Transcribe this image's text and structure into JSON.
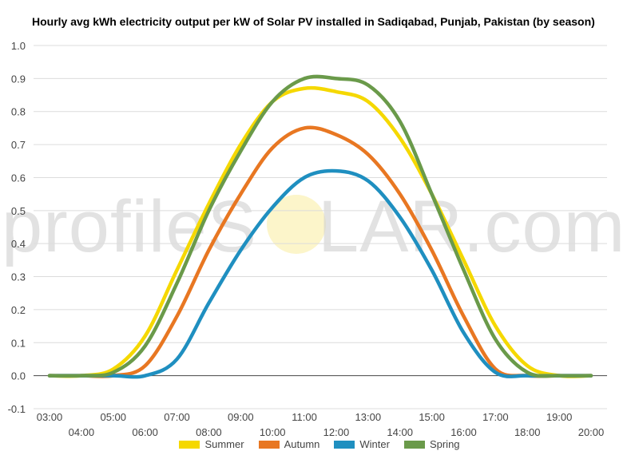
{
  "chart_data": {
    "type": "line",
    "title": "Hourly avg kWh electricity output per kW of Solar PV installed in Sadiqabad, Punjab, Pakistan (by season)",
    "xlabel": "",
    "ylabel": "",
    "ylim": [
      -0.1,
      1.0
    ],
    "yticks": [
      "-0.1",
      "0.0",
      "0.1",
      "0.2",
      "0.3",
      "0.4",
      "0.5",
      "0.6",
      "0.7",
      "0.8",
      "0.9",
      "1.0"
    ],
    "x": [
      "03:00",
      "04:00",
      "05:00",
      "06:00",
      "07:00",
      "08:00",
      "09:00",
      "10:00",
      "11:00",
      "12:00",
      "13:00",
      "14:00",
      "15:00",
      "16:00",
      "17:00",
      "18:00",
      "19:00",
      "20:00"
    ],
    "grid": true,
    "legend_position": "bottom",
    "series": [
      {
        "name": "Summer",
        "color": "#f5d800",
        "values": [
          0.0,
          0.0,
          0.02,
          0.12,
          0.32,
          0.52,
          0.7,
          0.83,
          0.87,
          0.86,
          0.83,
          0.72,
          0.55,
          0.35,
          0.15,
          0.03,
          0.0,
          0.0
        ]
      },
      {
        "name": "Autumn",
        "color": "#e87722",
        "values": [
          0.0,
          0.0,
          0.0,
          0.03,
          0.18,
          0.38,
          0.55,
          0.69,
          0.75,
          0.73,
          0.67,
          0.55,
          0.38,
          0.18,
          0.02,
          0.0,
          0.0,
          0.0
        ]
      },
      {
        "name": "Winter",
        "color": "#1f8fc0",
        "values": [
          0.0,
          0.0,
          0.0,
          0.0,
          0.05,
          0.22,
          0.38,
          0.51,
          0.6,
          0.62,
          0.59,
          0.48,
          0.32,
          0.13,
          0.01,
          0.0,
          0.0,
          0.0
        ]
      },
      {
        "name": "Spring",
        "color": "#6a9a4a",
        "values": [
          0.0,
          0.0,
          0.01,
          0.09,
          0.28,
          0.5,
          0.68,
          0.83,
          0.9,
          0.9,
          0.88,
          0.77,
          0.55,
          0.32,
          0.11,
          0.01,
          0.0,
          0.0
        ]
      }
    ]
  },
  "watermark": {
    "text_left": "profileS",
    "text_right": "LAR.com"
  }
}
